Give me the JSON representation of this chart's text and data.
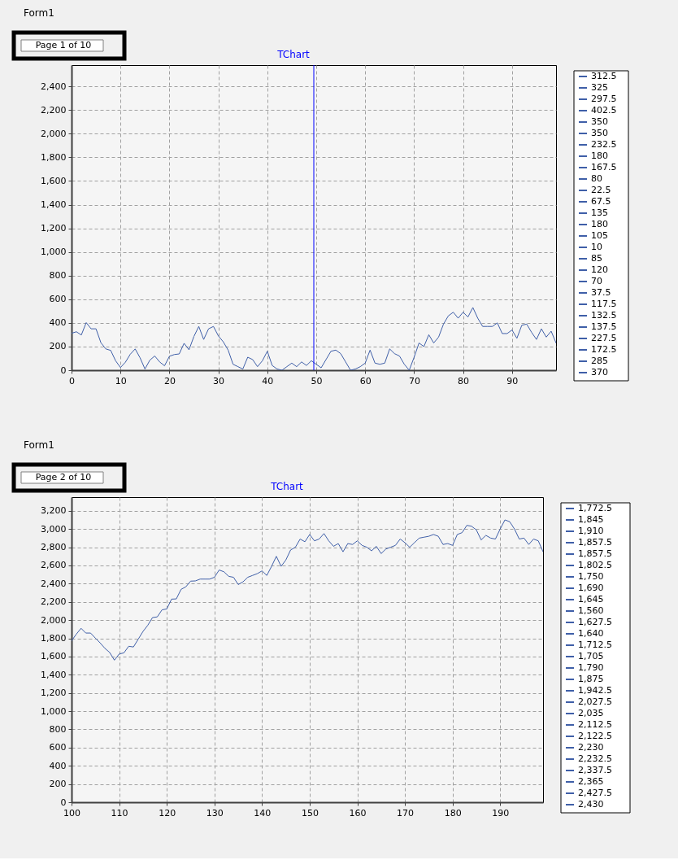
{
  "chart_data": [
    {
      "type": "line",
      "title": "TChart",
      "annotations": [
        "Form1",
        "Page 1 of 10",
        "312.5",
        "325",
        "297.5",
        "402.5",
        "350",
        "350",
        "232.5",
        "180",
        "167.5",
        "80",
        "22.5",
        "67.5",
        "135",
        "180",
        "105",
        "10",
        "85",
        "120",
        "70",
        "37.5",
        "117.5",
        "132.5",
        "137.5",
        "227.5",
        "172.5",
        "285",
        "370"
      ],
      "x": [
        0,
        1,
        2,
        3,
        4,
        5,
        6,
        7,
        8,
        9,
        10,
        11,
        12,
        13,
        14,
        15,
        16,
        17,
        18,
        19,
        20,
        21,
        22,
        23,
        24,
        25,
        26,
        27,
        28,
        29,
        30,
        31,
        32,
        33,
        34,
        35,
        36,
        37,
        38,
        39,
        40,
        41,
        42,
        43,
        44,
        45,
        46,
        47,
        48,
        49,
        50,
        51,
        52,
        53,
        54,
        55,
        56,
        57,
        58,
        59,
        60,
        61,
        62,
        63,
        64,
        65,
        66,
        67,
        68,
        69,
        70,
        71,
        72,
        73,
        74,
        75,
        76,
        77,
        78,
        79,
        80,
        81,
        82,
        83,
        84,
        85,
        86,
        87,
        88,
        89,
        90,
        91,
        92,
        93,
        94,
        95,
        96,
        97,
        98,
        99
      ],
      "series": [
        {
          "color": "#3f5fa8",
          "values": [
            312.5,
            325,
            297.5,
            402.5,
            350,
            350,
            232.5,
            180,
            167.5,
            80,
            22.5,
            67.5,
            135,
            180,
            105,
            10,
            85,
            120,
            70,
            37.5,
            117.5,
            132.5,
            137.5,
            227.5,
            172.5,
            285,
            370,
            260,
            350,
            370,
            290,
            240,
            170,
            50,
            30,
            10,
            110,
            90,
            30,
            80,
            160,
            40,
            10,
            0,
            30,
            60,
            30,
            70,
            40,
            80,
            50,
            20,
            90,
            160,
            170,
            140,
            70,
            0,
            10,
            30,
            60,
            170,
            60,
            50,
            60,
            180,
            140,
            120,
            50,
            0,
            110,
            230,
            200,
            300,
            230,
            280,
            390,
            460,
            490,
            440,
            490,
            450,
            530,
            440,
            370,
            370,
            370,
            400,
            310,
            310,
            340,
            270,
            380,
            390,
            320,
            260,
            350,
            280,
            330,
            230
          ]
        }
      ],
      "xlim": [
        0,
        99
      ],
      "xticks": [
        0,
        10,
        20,
        30,
        40,
        50,
        60,
        70,
        80,
        90
      ],
      "ylim": [
        0,
        2580
      ],
      "yticks": [
        0,
        200,
        400,
        600,
        800,
        {
          "value": 1000,
          "label": "1,000"
        },
        {
          "value": 1200,
          "label": "1,200"
        },
        {
          "value": 1400,
          "label": "1,400"
        },
        {
          "value": 1600,
          "label": "1,600"
        },
        {
          "value": 1800,
          "label": "1,800"
        },
        {
          "value": 2000,
          "label": "2,000"
        },
        {
          "value": 2200,
          "label": "2,200"
        },
        {
          "value": 2400,
          "label": "2,400"
        }
      ],
      "grid": true,
      "line_style": "solid",
      "ref_lines": [
        {
          "axis": "x",
          "value": 49.5,
          "color": "#0000ff"
        }
      ]
    },
    {
      "type": "line",
      "title": "TChart",
      "annotations": [
        "Form1",
        "Page 2 of 10",
        "1,772.5",
        "1,845",
        "1,910",
        "1,857.5",
        "1,857.5",
        "1,802.5",
        "1,750",
        "1,690",
        "1,645",
        "1,560",
        "1,627.5",
        "1,640",
        "1,712.5",
        "1,705",
        "1,790",
        "1,875",
        "1,942.5",
        "2,027.5",
        "2,035",
        "2,112.5",
        "2,122.5",
        "2,230",
        "2,232.5",
        "2,337.5",
        "2,365",
        "2,427.5",
        "2,430"
      ],
      "x": [
        100,
        101,
        102,
        103,
        104,
        105,
        106,
        107,
        108,
        109,
        110,
        111,
        112,
        113,
        114,
        115,
        116,
        117,
        118,
        119,
        120,
        121,
        122,
        123,
        124,
        125,
        126,
        127,
        128,
        129,
        130,
        131,
        132,
        133,
        134,
        135,
        136,
        137,
        138,
        139,
        140,
        141,
        142,
        143,
        144,
        145,
        146,
        147,
        148,
        149,
        150,
        151,
        152,
        153,
        154,
        155,
        156,
        157,
        158,
        159,
        160,
        161,
        162,
        163,
        164,
        165,
        166,
        167,
        168,
        169,
        170,
        171,
        172,
        173,
        174,
        175,
        176,
        177,
        178,
        179,
        180,
        181,
        182,
        183,
        184,
        185,
        186,
        187,
        188,
        189,
        190,
        191,
        192,
        193,
        194,
        195,
        196,
        197,
        198,
        199
      ],
      "series": [
        {
          "color": "#3f5fa8",
          "values": [
            1772.5,
            1845,
            1910,
            1857.5,
            1857.5,
            1802.5,
            1750,
            1690,
            1645,
            1560,
            1627.5,
            1640,
            1712.5,
            1705,
            1790,
            1875,
            1942.5,
            2027.5,
            2035,
            2112.5,
            2122.5,
            2230,
            2232.5,
            2337.5,
            2365,
            2427.5,
            2430,
            2450,
            2450,
            2450,
            2470,
            2550,
            2530,
            2480,
            2470,
            2390,
            2420,
            2470,
            2490,
            2510,
            2540,
            2490,
            2590,
            2700,
            2590,
            2660,
            2770,
            2800,
            2890,
            2860,
            2940,
            2870,
            2890,
            2950,
            2870,
            2810,
            2840,
            2750,
            2840,
            2830,
            2870,
            2820,
            2800,
            2760,
            2810,
            2730,
            2780,
            2800,
            2820,
            2890,
            2850,
            2800,
            2850,
            2900,
            2910,
            2920,
            2940,
            2920,
            2830,
            2840,
            2820,
            2940,
            2960,
            3040,
            3030,
            2990,
            2880,
            2930,
            2900,
            2890,
            3000,
            3100,
            3080,
            3000,
            2890,
            2900,
            2830,
            2890,
            2870,
            2750
          ]
        }
      ],
      "xlim": [
        100,
        199
      ],
      "xticks": [
        100,
        110,
        120,
        130,
        140,
        150,
        160,
        170,
        180,
        190
      ],
      "ylim": [
        0,
        3350
      ],
      "yticks": [
        0,
        200,
        400,
        600,
        800,
        {
          "value": 1000,
          "label": "1,000"
        },
        {
          "value": 1200,
          "label": "1,200"
        },
        {
          "value": 1400,
          "label": "1,400"
        },
        {
          "value": 1600,
          "label": "1,600"
        },
        {
          "value": 1800,
          "label": "1,800"
        },
        {
          "value": 2000,
          "label": "2,000"
        },
        {
          "value": 2200,
          "label": "2,200"
        },
        {
          "value": 2400,
          "label": "2,400"
        },
        {
          "value": 2600,
          "label": "2,600"
        },
        {
          "value": 2800,
          "label": "2,800"
        },
        {
          "value": 3000,
          "label": "3,000"
        },
        {
          "value": 3200,
          "label": "3,200"
        }
      ],
      "grid": true,
      "line_style": "solid"
    }
  ]
}
